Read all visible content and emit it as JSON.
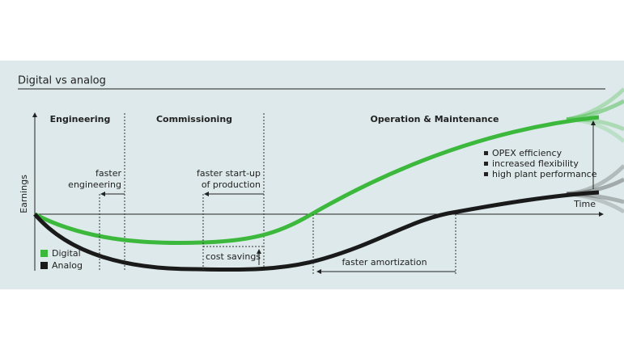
{
  "title": "Digital vs analog",
  "axes": {
    "y_label": "Earnings",
    "x_label": "Time"
  },
  "phases": [
    "Engineering",
    "Commissioning",
    "Operation & Maintenance"
  ],
  "annotations": {
    "faster_engineering": [
      "faster",
      "engineering"
    ],
    "faster_startup": [
      "faster start-up",
      "of production"
    ],
    "cost_savings": "cost savings",
    "faster_amortization": "faster amortization",
    "benefits": [
      "OPEX efficiency",
      "increased flexibility",
      "high plant performance"
    ]
  },
  "legend": [
    {
      "name": "Digital",
      "color": "#3cb93c"
    },
    {
      "name": "Analog",
      "color": "#1a1a1a"
    }
  ]
}
